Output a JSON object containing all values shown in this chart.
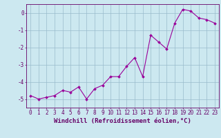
{
  "x": [
    0,
    1,
    2,
    3,
    4,
    5,
    6,
    7,
    8,
    9,
    10,
    11,
    12,
    13,
    14,
    15,
    16,
    17,
    18,
    19,
    20,
    21,
    22,
    23
  ],
  "y": [
    -4.8,
    -5.0,
    -4.9,
    -4.8,
    -4.5,
    -4.6,
    -4.3,
    -5.0,
    -4.4,
    -4.2,
    -3.7,
    -3.7,
    -3.1,
    -2.6,
    -3.7,
    -1.3,
    -1.7,
    -2.1,
    -0.6,
    0.2,
    0.1,
    -0.3,
    -0.4,
    -0.6
  ],
  "line_color": "#990099",
  "marker": "D",
  "marker_size": 2,
  "bg_color": "#cce8f0",
  "grid_color": "#99bbcc",
  "xlabel": "Windchill (Refroidissement éolien,°C)",
  "ylabel": "",
  "ylim": [
    -5.5,
    0.5
  ],
  "xlim": [
    -0.5,
    23.5
  ],
  "yticks": [
    0,
    -1,
    -2,
    -3,
    -4,
    -5
  ],
  "xticks": [
    0,
    1,
    2,
    3,
    4,
    5,
    6,
    7,
    8,
    9,
    10,
    11,
    12,
    13,
    14,
    15,
    16,
    17,
    18,
    19,
    20,
    21,
    22,
    23
  ],
  "tick_color": "#660066",
  "label_color": "#660066",
  "title": "",
  "font_size": 5.5,
  "xlabel_fontsize": 6.5
}
